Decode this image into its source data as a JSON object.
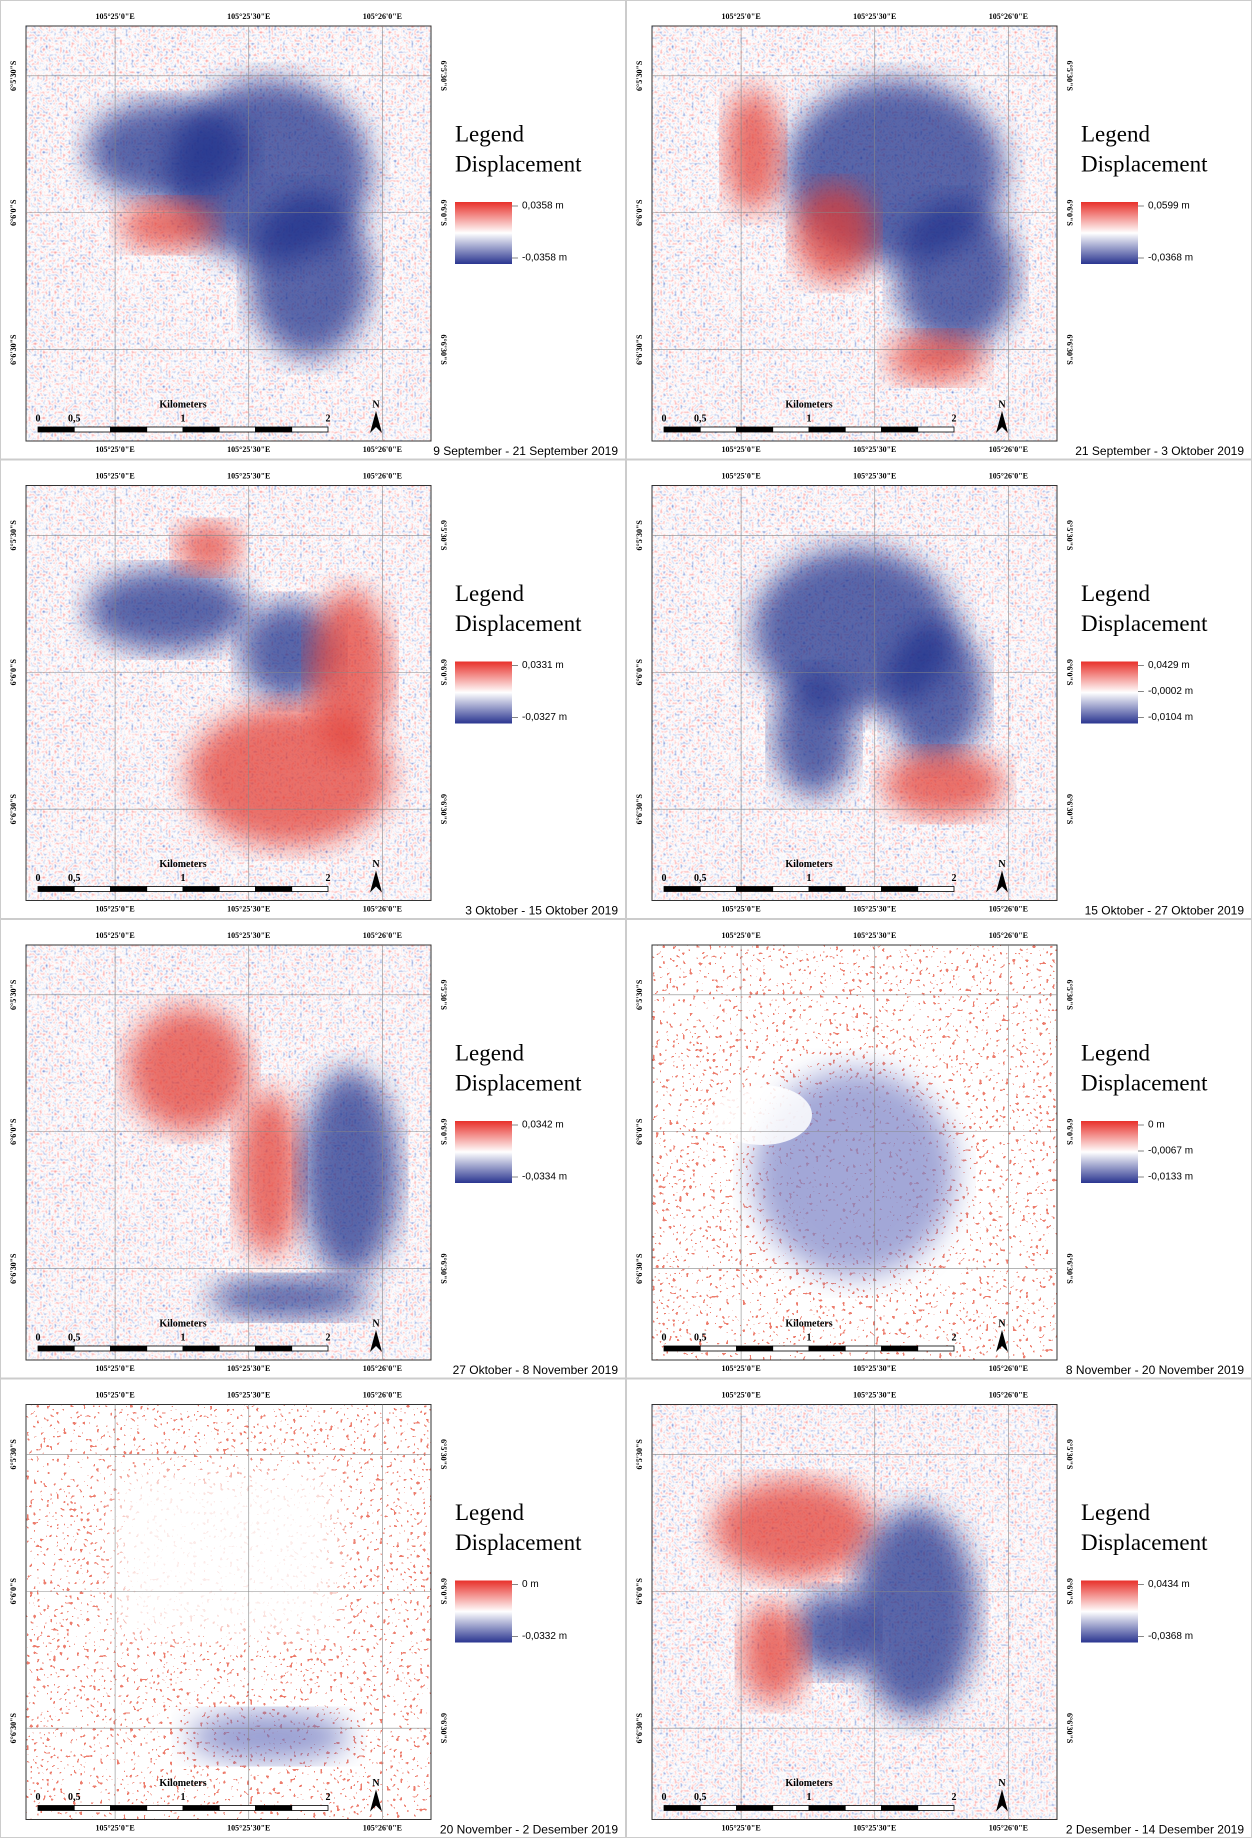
{
  "coords": {
    "lon": [
      "105°25'0\"E",
      "105°25'30\"E",
      "105°26'0\"E"
    ],
    "lat": [
      "6°5'30\"S",
      "6°6'0\"S",
      "6°6'30\"S"
    ]
  },
  "scale_bar": {
    "labels": [
      "0",
      "0,5",
      "1",
      "2"
    ],
    "unit": "Kilometers"
  },
  "north": "N",
  "legend": {
    "title": "Legend",
    "subtitle": "Displacement"
  },
  "panels": [
    {
      "caption": "9 September - 21 September 2019",
      "legend_labels": [
        "0,0358 m",
        "-0,0358 m"
      ]
    },
    {
      "caption": "21 September - 3 Oktober 2019",
      "legend_labels": [
        "0,0599 m",
        "-0,0368 m"
      ]
    },
    {
      "caption": "3 Oktober - 15 Oktober 2019",
      "legend_labels": [
        "0,0331 m",
        "-0,0327 m"
      ]
    },
    {
      "caption": "15 Oktober - 27 Oktober 2019",
      "legend_labels": [
        "0,0429 m",
        "-0,0002 m",
        "-0,0104 m"
      ]
    },
    {
      "caption": "27 Oktober - 8 November 2019",
      "legend_labels": [
        "0,0342 m",
        "-0,0334 m"
      ]
    },
    {
      "caption": "8 November - 20 November 2019",
      "legend_labels": [
        "0 m",
        "-0,0067 m",
        "-0,0133 m"
      ]
    },
    {
      "caption": "20 November - 2 Desember 2019",
      "legend_labels": [
        "0 m",
        "-0,0332 m"
      ]
    },
    {
      "caption": "2 Desember - 14 Desember 2019",
      "legend_labels": [
        "0,0434 m",
        "-0,0368 m"
      ]
    }
  ]
}
